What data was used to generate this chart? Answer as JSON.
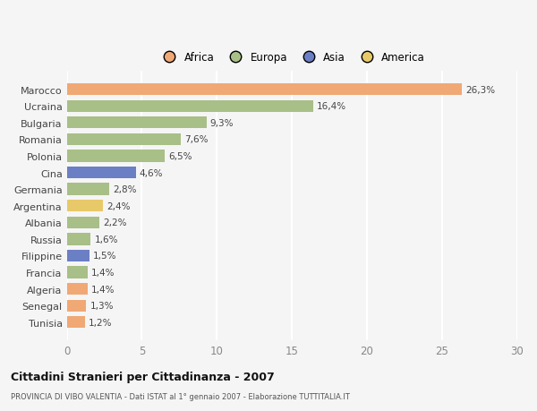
{
  "countries": [
    "Tunisia",
    "Senegal",
    "Algeria",
    "Francia",
    "Filippine",
    "Russia",
    "Albania",
    "Argentina",
    "Germania",
    "Cina",
    "Polonia",
    "Romania",
    "Bulgaria",
    "Ucraina",
    "Marocco"
  ],
  "values": [
    1.2,
    1.3,
    1.4,
    1.4,
    1.5,
    1.6,
    2.2,
    2.4,
    2.8,
    4.6,
    6.5,
    7.6,
    9.3,
    16.4,
    26.3
  ],
  "labels": [
    "1,2%",
    "1,3%",
    "1,4%",
    "1,4%",
    "1,5%",
    "1,6%",
    "2,2%",
    "2,4%",
    "2,8%",
    "4,6%",
    "6,5%",
    "7,6%",
    "9,3%",
    "16,4%",
    "26,3%"
  ],
  "colors": [
    "#f0a875",
    "#f0a875",
    "#f0a875",
    "#a8bf87",
    "#6b7fc4",
    "#a8bf87",
    "#a8bf87",
    "#e8c96a",
    "#a8bf87",
    "#6b7fc4",
    "#a8bf87",
    "#a8bf87",
    "#a8bf87",
    "#a8bf87",
    "#f0a875"
  ],
  "legend_labels": [
    "Africa",
    "Europa",
    "Asia",
    "America"
  ],
  "legend_colors": [
    "#f0a875",
    "#a8bf87",
    "#6b7fc4",
    "#e8c96a"
  ],
  "title": "Cittadini Stranieri per Cittadinanza - 2007",
  "subtitle": "PROVINCIA DI VIBO VALENTIA - Dati ISTAT al 1° gennaio 2007 - Elaborazione TUTTITALIA.IT",
  "xlim": [
    0,
    30
  ],
  "xticks": [
    0,
    5,
    10,
    15,
    20,
    25,
    30
  ],
  "bg_color": "#f5f5f5",
  "grid_color": "#ffffff",
  "bar_height": 0.72,
  "label_fontsize": 7.5,
  "ytick_fontsize": 8.0,
  "xtick_fontsize": 8.5
}
